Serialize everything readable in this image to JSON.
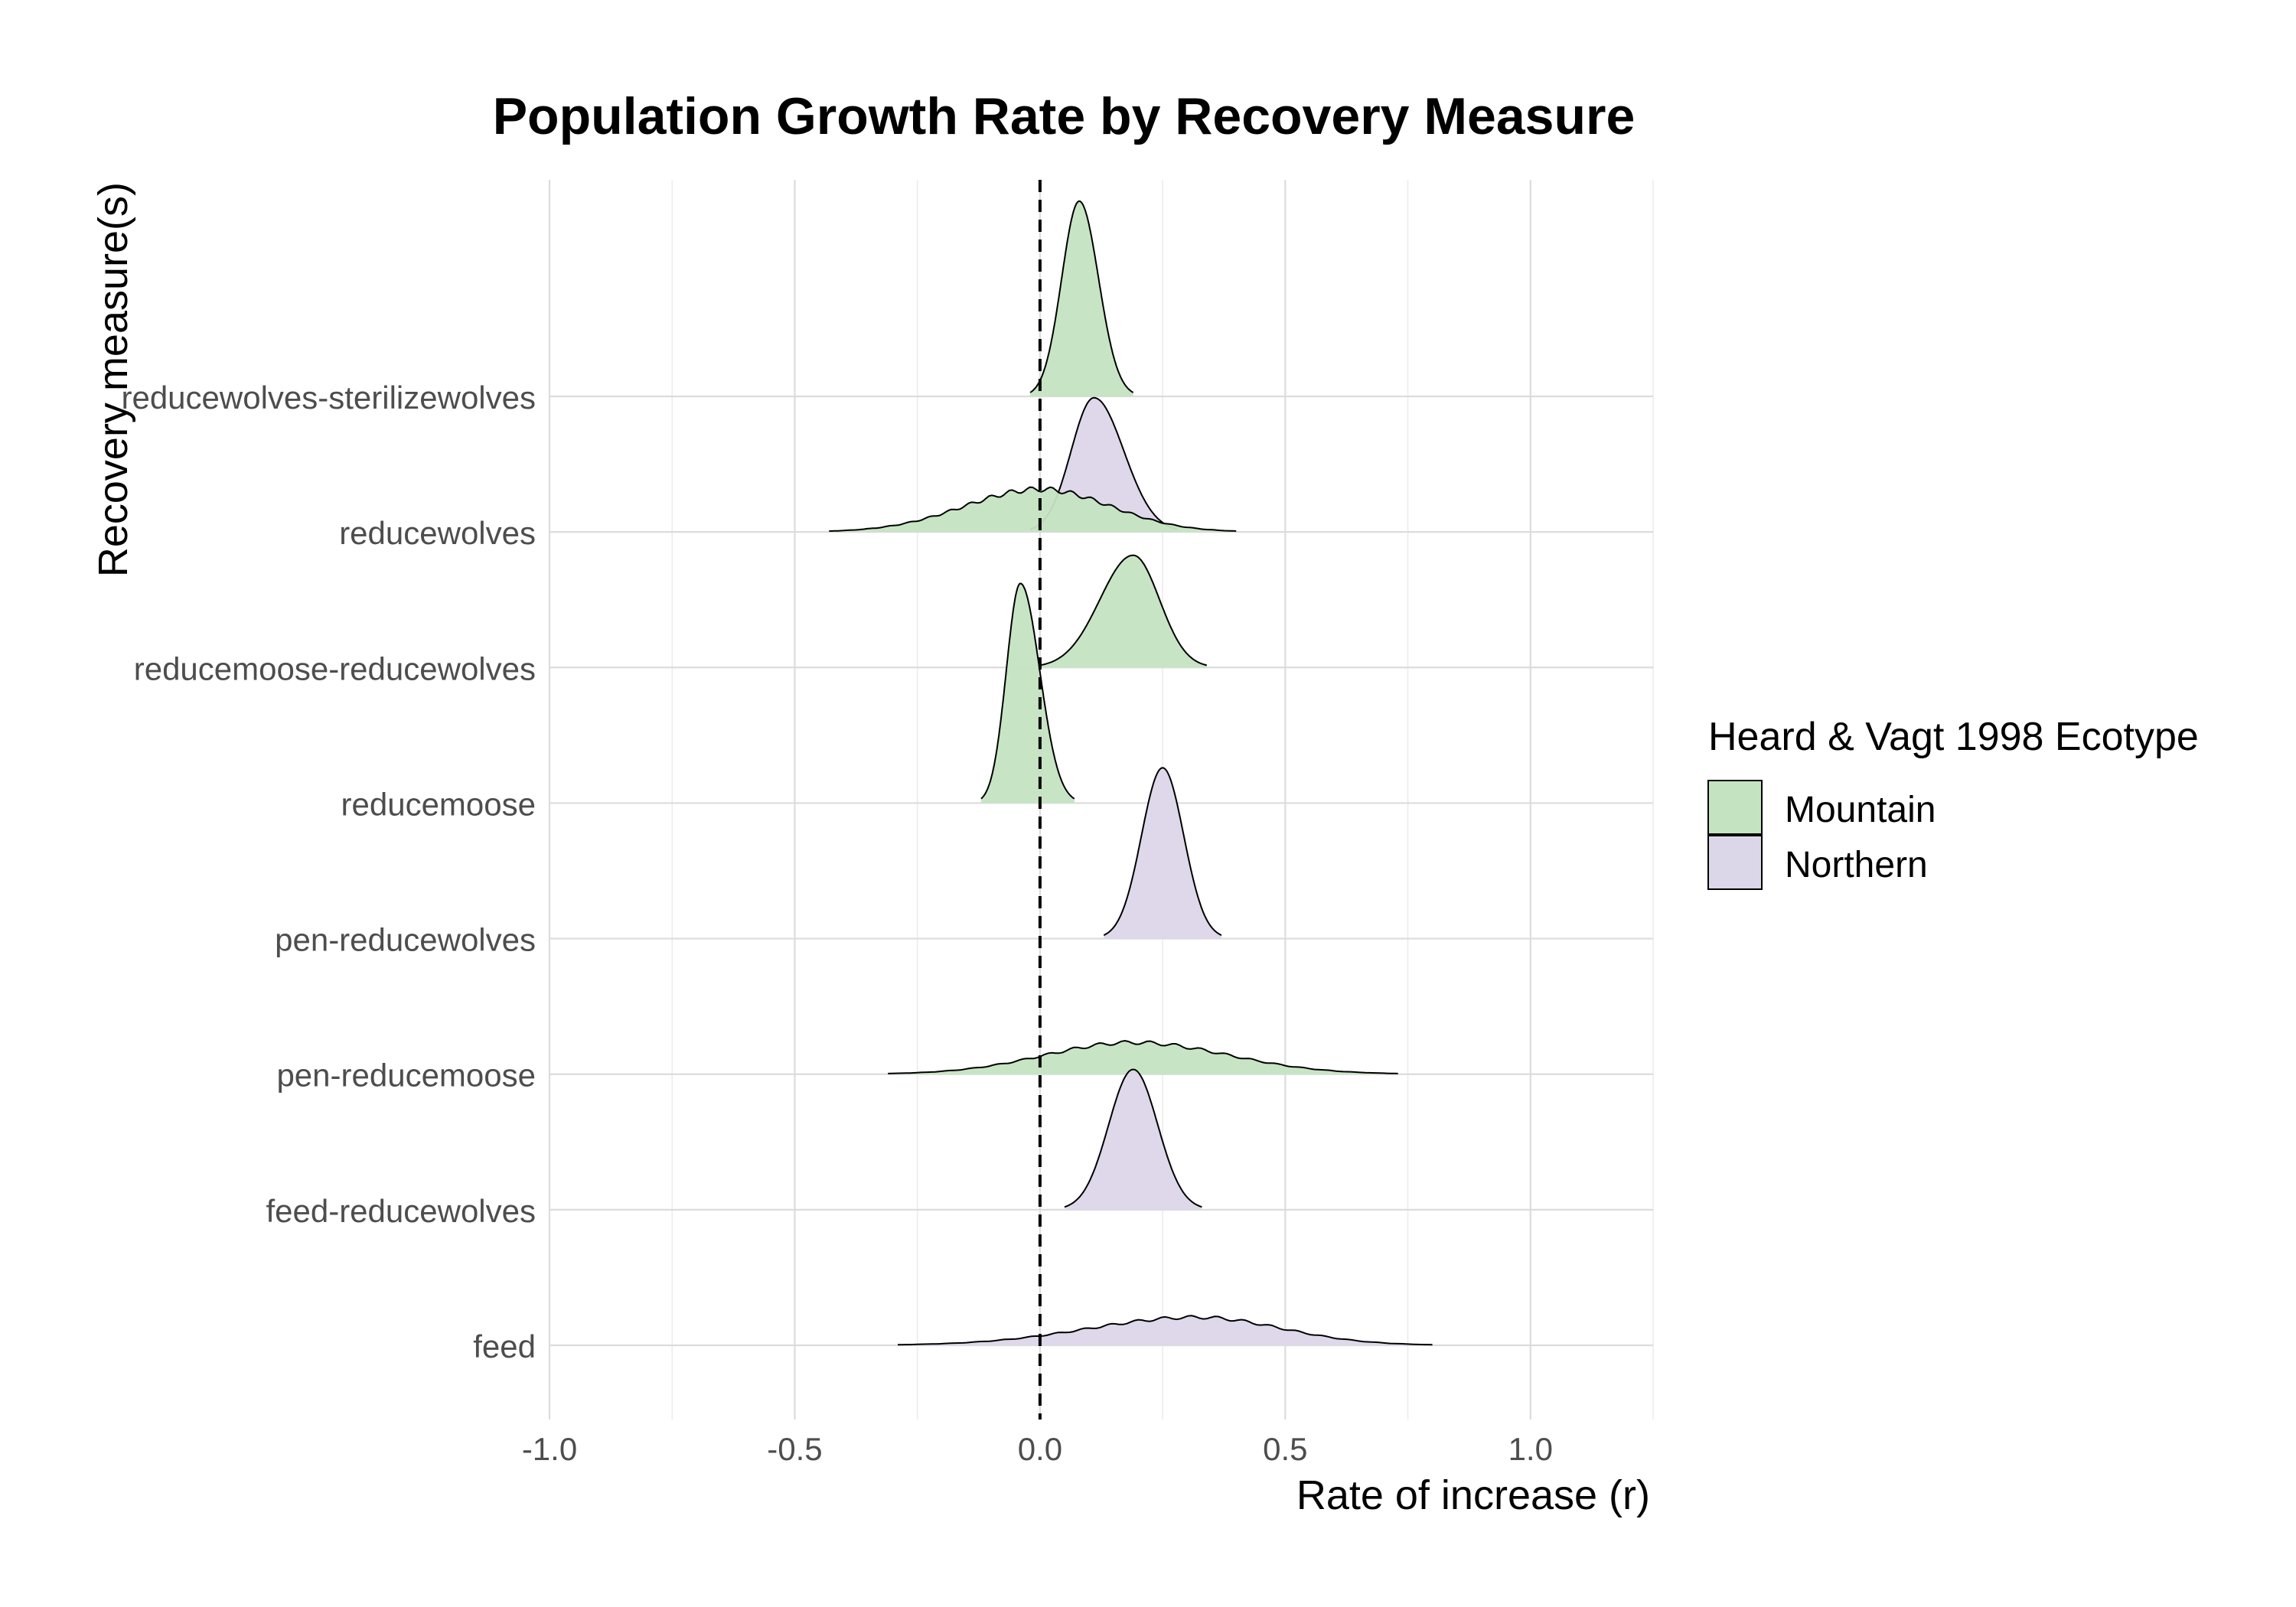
{
  "chart_data": {
    "type": "ridgeline",
    "title": "Population Growth Rate by Recovery Measure",
    "xlabel": "Rate of increase (r)",
    "ylabel": "Recovery measure(s)",
    "xlim": [
      -1.0,
      1.25
    ],
    "x_ticks": [
      -1.0,
      -0.5,
      0.0,
      0.5,
      1.0
    ],
    "x_tick_labels": [
      "-1.0",
      "-0.5",
      "0.0",
      "0.5",
      "1.0"
    ],
    "grid": true,
    "reference_line": {
      "x": 0,
      "style": "dashed"
    },
    "categories": [
      "feed",
      "feed-reducewolves",
      "pen-reducemoose",
      "pen-reducewolves",
      "reducemoose",
      "reducemoose-reducewolves",
      "reducewolves",
      "reducewolves-sterilizewolves"
    ],
    "legend": {
      "title": "Heard & Vagt 1998 Ecotype",
      "position": "right",
      "entries": [
        {
          "name": "Mountain",
          "color": "#c4e4c1"
        },
        {
          "name": "Northern",
          "color": "#dcd6e9"
        }
      ]
    },
    "series": [
      {
        "category": "reducewolves-sterilizewolves",
        "ecotype": "Mountain",
        "peak_x": 0.08,
        "min_x": -0.02,
        "max_x": 0.19,
        "peak_height": 1.6
      },
      {
        "category": "reducewolves",
        "ecotype": "Northern",
        "peak_x": 0.11,
        "min_x": -0.02,
        "max_x": 0.28,
        "peak_height": 1.1
      },
      {
        "category": "reducewolves",
        "ecotype": "Mountain",
        "peak_x": 0.0,
        "min_x": -0.43,
        "max_x": 0.4,
        "peak_height": 0.35
      },
      {
        "category": "reducemoose-reducewolves",
        "ecotype": "Mountain",
        "peak_x": 0.19,
        "min_x": 0.0,
        "max_x": 0.34,
        "peak_height": 0.92
      },
      {
        "category": "reducemoose",
        "ecotype": "Mountain",
        "peak_x": -0.04,
        "min_x": -0.12,
        "max_x": 0.07,
        "peak_height": 1.8
      },
      {
        "category": "pen-reducewolves",
        "ecotype": "Northern",
        "peak_x": 0.25,
        "min_x": 0.13,
        "max_x": 0.37,
        "peak_height": 1.4
      },
      {
        "category": "pen-reducemoose",
        "ecotype": "Mountain",
        "peak_x": 0.19,
        "min_x": -0.31,
        "max_x": 0.73,
        "peak_height": 0.26
      },
      {
        "category": "feed-reducewolves",
        "ecotype": "Northern",
        "peak_x": 0.19,
        "min_x": 0.05,
        "max_x": 0.33,
        "peak_height": 1.15
      },
      {
        "category": "feed",
        "ecotype": "Northern",
        "peak_x": 0.32,
        "min_x": -0.29,
        "max_x": 0.8,
        "peak_height": 0.23
      }
    ]
  }
}
